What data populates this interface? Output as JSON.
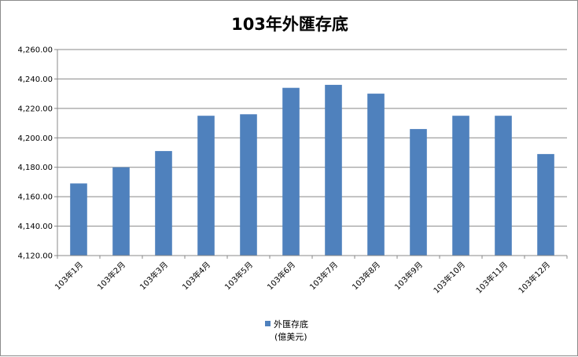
{
  "chart_data": {
    "type": "bar",
    "title": "103年外匯存底",
    "categories": [
      "103年1月",
      "103年2月",
      "103年3月",
      "103年4月",
      "103年5月",
      "103年6月",
      "103年7月",
      "103年8月",
      "103年9月",
      "103年10月",
      "103年11月",
      "103年12月"
    ],
    "series": [
      {
        "name": "外匯存底",
        "unit": "(億美元)",
        "color": "#4f81bd",
        "values": [
          4169,
          4180,
          4191,
          4215,
          4216,
          4234,
          4236,
          4230,
          4206,
          4215,
          4215,
          4189
        ]
      }
    ],
    "ylim": [
      4120,
      4260
    ],
    "yticks": [
      "4,120.00",
      "4,140.00",
      "4,160.00",
      "4,180.00",
      "4,200.00",
      "4,220.00",
      "4,240.00",
      "4,260.00"
    ],
    "ytick_values": [
      4120,
      4140,
      4160,
      4180,
      4200,
      4220,
      4240,
      4260
    ],
    "grid": true,
    "legend": "bottom"
  }
}
